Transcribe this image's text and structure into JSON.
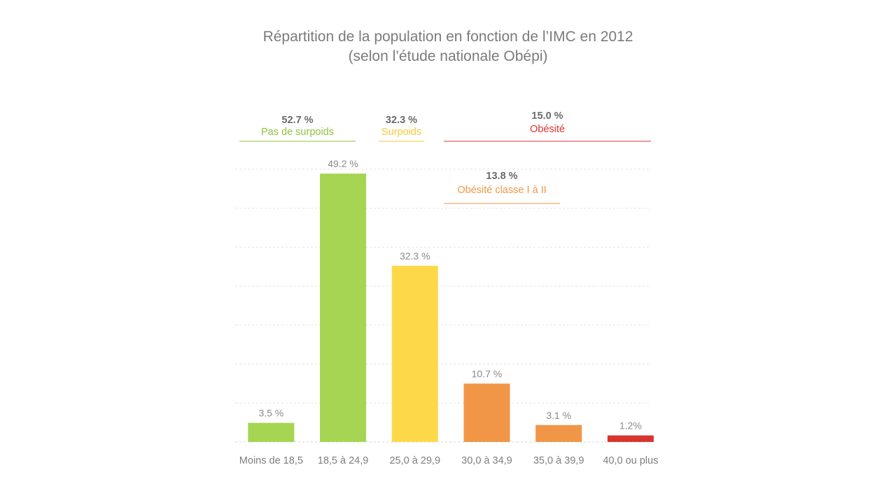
{
  "chart_data": {
    "type": "bar",
    "title": "Répartition de la population en fonction de l’IMC en 2012",
    "subtitle": "(selon l’étude nationale Obépi)",
    "categories": [
      "Moins de 18,5",
      "18,5 à 24,9",
      "25,0 à 29,9",
      "30,0 à 34,9",
      "35,0 à 39,9",
      "40,0 ou plus"
    ],
    "values": [
      3.5,
      49.2,
      32.3,
      10.7,
      3.1,
      1.2
    ],
    "data_labels": [
      "3.5 %",
      "49.2 %",
      "32.3 %",
      "10.7 %",
      "3.1 %",
      "1.2%"
    ],
    "bar_colors": [
      "#a5d552",
      "#a5d552",
      "#fdd94a",
      "#f19647",
      "#f19647",
      "#d9342f"
    ],
    "ylim": [
      0,
      50
    ],
    "grid": true,
    "xlabel": "",
    "ylabel": "",
    "groups": [
      {
        "pct": "52.7 %",
        "name": "Pas de surpoids",
        "color": "#8cc43c",
        "from": 0,
        "to": 1
      },
      {
        "pct": "32.3 %",
        "name": "Surpoids",
        "color": "#f5c93a",
        "from": 2,
        "to": 2
      },
      {
        "pct": "15.0 %",
        "name": "Obésité",
        "color": "#d9342f",
        "from": 3,
        "to": 5
      },
      {
        "pct": "13.8 %",
        "name": "Obésité classe I à II",
        "color": "#f19647",
        "from": 3,
        "to": 4
      }
    ]
  }
}
